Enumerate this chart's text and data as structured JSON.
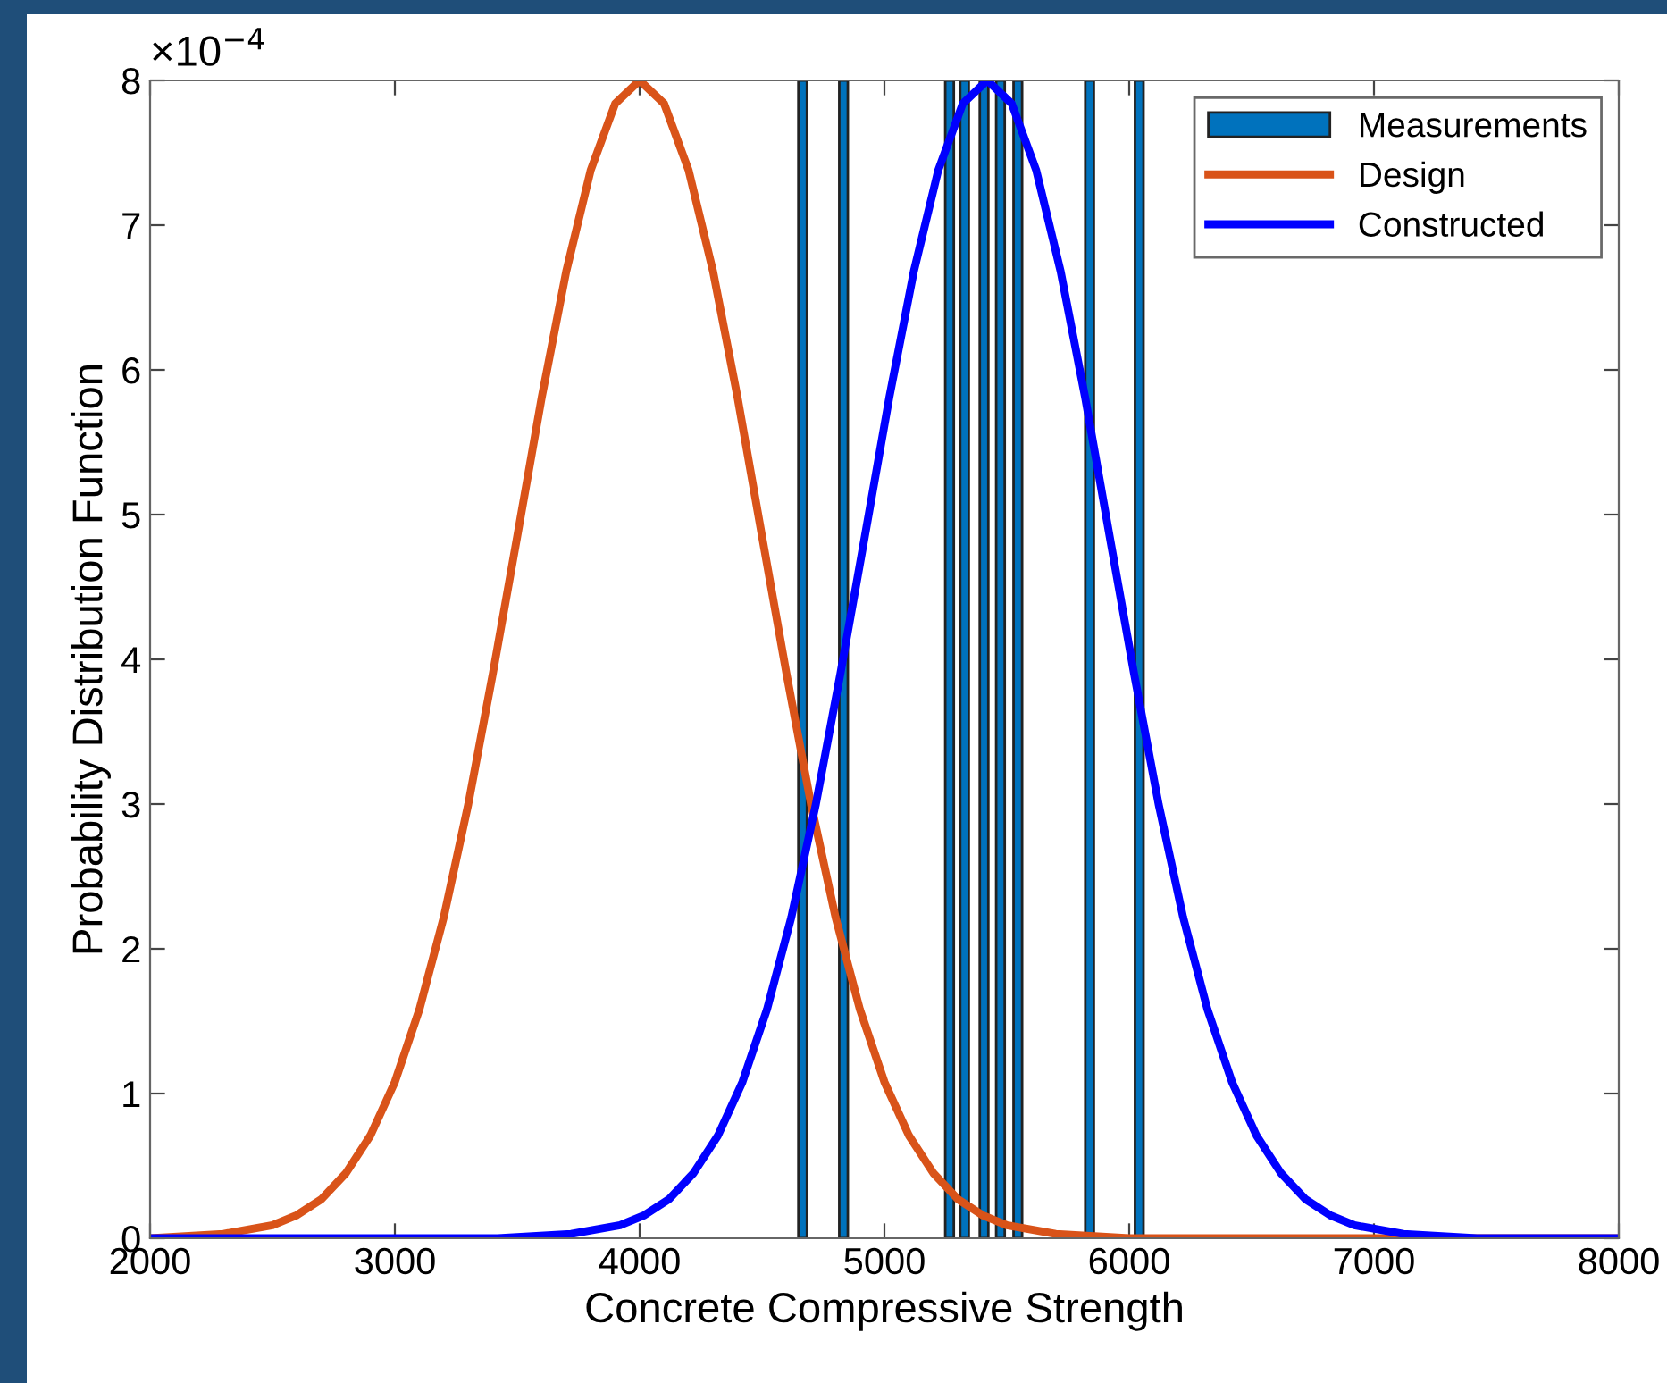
{
  "chart_data": {
    "type": "line",
    "xlabel": "Concrete Compressive Strength",
    "ylabel": "Probability Distribution Function",
    "annotations": [
      "×10$^{−4}$"
    ],
    "xlim": [
      2000,
      8000
    ],
    "ylim": [
      0,
      8
    ],
    "xticks": [
      2000,
      3000,
      4000,
      5000,
      6000,
      7000,
      8000
    ],
    "yticks": [
      0,
      1,
      2,
      3,
      4,
      5,
      6,
      7,
      8
    ],
    "grid": false,
    "legend": "top right",
    "marker": "none",
    "line_style": "solid",
    "series": [
      {
        "name": "Measurements",
        "type": "bar",
        "color": "#0072bd",
        "x": [
          4666,
          4833,
          5266,
          5327,
          5407,
          5474,
          5545,
          5838,
          6041
        ],
        "values": [
          8,
          8,
          8,
          8,
          8,
          8,
          8,
          8,
          8
        ]
      },
      {
        "name": "Design",
        "color": "#d95319",
        "x": [
          2000,
          2300,
          2500,
          2600,
          2700,
          2800,
          2900,
          3000,
          3100,
          3200,
          3300,
          3400,
          3500,
          3600,
          3700,
          3800,
          3900,
          4000,
          4100,
          4200,
          4300,
          4400,
          4500,
          4600,
          4700,
          4800,
          4900,
          5000,
          5100,
          5200,
          5300,
          5400,
          5500,
          5700,
          6000,
          8000
        ],
        "values": [
          0.0,
          0.03,
          0.09,
          0.16,
          0.27,
          0.45,
          0.71,
          1.08,
          1.58,
          2.22,
          3.0,
          3.9,
          4.85,
          5.81,
          6.68,
          7.38,
          7.84,
          8.0,
          7.84,
          7.38,
          6.68,
          5.81,
          4.85,
          3.9,
          3.0,
          2.22,
          1.58,
          1.08,
          0.71,
          0.45,
          0.27,
          0.16,
          0.09,
          0.03,
          0.0,
          0.0
        ]
      },
      {
        "name": "Constructed",
        "color": "#0000ff",
        "x": [
          2000,
          3420,
          3720,
          3920,
          4020,
          4120,
          4220,
          4320,
          4420,
          4520,
          4620,
          4720,
          4820,
          4920,
          5020,
          5120,
          5220,
          5320,
          5420,
          5520,
          5620,
          5720,
          5820,
          5920,
          6020,
          6120,
          6220,
          6320,
          6420,
          6520,
          6620,
          6720,
          6820,
          6920,
          7120,
          7420,
          8000
        ],
        "values": [
          0.0,
          0.0,
          0.03,
          0.09,
          0.16,
          0.27,
          0.45,
          0.71,
          1.08,
          1.58,
          2.22,
          3.0,
          3.9,
          4.85,
          5.81,
          6.68,
          7.38,
          7.84,
          8.0,
          7.84,
          7.38,
          6.68,
          5.81,
          4.85,
          3.9,
          3.0,
          2.22,
          1.58,
          1.08,
          0.71,
          0.45,
          0.27,
          0.16,
          0.09,
          0.03,
          0.0,
          0.0
        ]
      }
    ]
  }
}
